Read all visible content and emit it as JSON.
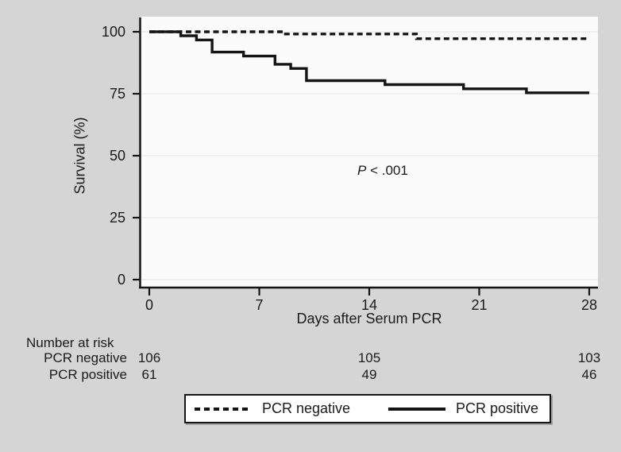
{
  "figure": {
    "background": "#d5d5d5",
    "plot_background": "#fbfbfb",
    "grid_color": "#ececec",
    "ink_color": "#141414"
  },
  "chart_data": {
    "type": "line",
    "subtype": "kaplan-meier-step",
    "title": "",
    "xlabel": "Days after Serum PCR",
    "ylabel": "Survival (%)",
    "xlim": [
      0,
      28
    ],
    "ylim": [
      0,
      100
    ],
    "xticks": [
      0,
      7,
      14,
      21,
      28
    ],
    "yticks": [
      0,
      25,
      50,
      75,
      100
    ],
    "grid": true,
    "legend_position": "bottom",
    "annotation": {
      "p_italic": "P",
      "rest": " < .001"
    },
    "series": [
      {
        "name": "PCR negative",
        "line_style": "dotted",
        "points": [
          [
            0,
            100
          ],
          [
            8.5,
            99.1
          ],
          [
            17,
            97.2
          ],
          [
            28,
            97.2
          ]
        ]
      },
      {
        "name": "PCR positive",
        "line_style": "solid",
        "points": [
          [
            0,
            100
          ],
          [
            2,
            98.4
          ],
          [
            3,
            96.7
          ],
          [
            4,
            91.8
          ],
          [
            6,
            90.2
          ],
          [
            8,
            86.9
          ],
          [
            9,
            85.2
          ],
          [
            10,
            80.3
          ],
          [
            15,
            78.7
          ],
          [
            20,
            77.0
          ],
          [
            24,
            75.4
          ],
          [
            28,
            75.4
          ]
        ]
      }
    ]
  },
  "risk_table": {
    "title": "Number at risk",
    "times": [
      0,
      14,
      28
    ],
    "rows": [
      {
        "label": "PCR negative",
        "counts": [
          "106",
          "105",
          "103"
        ]
      },
      {
        "label": "PCR positive",
        "counts": [
          "61",
          "49",
          "46"
        ]
      }
    ]
  },
  "legend": {
    "items": [
      {
        "label": "PCR negative",
        "style": "dotted"
      },
      {
        "label": "PCR positive",
        "style": "solid"
      }
    ]
  }
}
